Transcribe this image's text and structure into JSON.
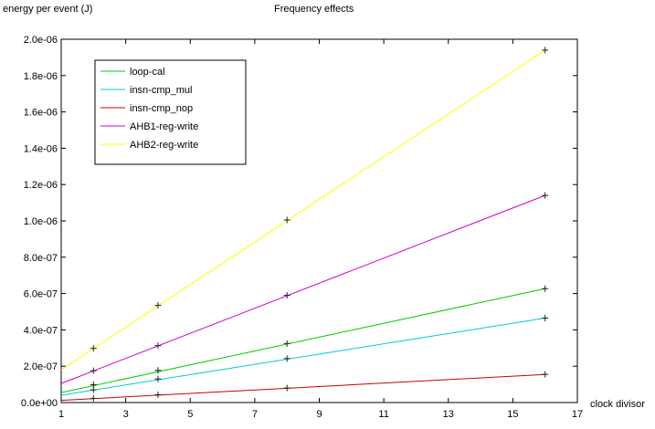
{
  "chart_data": {
    "type": "line",
    "title": "Frequency effects",
    "xlabel": "clock divisor",
    "ylabel": "energy per event (J)",
    "xlim": [
      1,
      17
    ],
    "ylim": [
      0,
      2e-06
    ],
    "x_ticks": [
      "1",
      "3",
      "5",
      "7",
      "9",
      "11",
      "13",
      "15",
      "17"
    ],
    "y_ticks": [
      "0.0e+00",
      "2.0e-07",
      "4.0e-07",
      "6.0e-07",
      "8.0e-07",
      "1.0e-06",
      "1.2e-06",
      "1.4e-06",
      "1.6e-06",
      "1.8e-06",
      "2.0e-06"
    ],
    "grid": false,
    "legend_position": "top-left",
    "series": [
      {
        "name": "loop-cal",
        "color": "#00cc00",
        "line_points": [
          [
            1,
            5.5e-08
          ],
          [
            16,
            6.27e-07
          ]
        ],
        "points": [
          [
            2,
            9.8e-08
          ],
          [
            4,
            1.77e-07
          ],
          [
            8,
            3.25e-07
          ],
          [
            16,
            6.27e-07
          ]
        ]
      },
      {
        "name": "insn-cmp_mul",
        "color": "#00cccc",
        "line_points": [
          [
            1,
            4e-08
          ],
          [
            16,
            4.65e-07
          ]
        ],
        "points": [
          [
            2,
            7e-08
          ],
          [
            4,
            1.3e-07
          ],
          [
            8,
            2.42e-07
          ],
          [
            16,
            4.65e-07
          ]
        ]
      },
      {
        "name": "insn-cmp_nop",
        "color": "#cc0000",
        "line_points": [
          [
            1,
            1.2e-08
          ],
          [
            16,
            1.55e-07
          ]
        ],
        "points": [
          [
            2,
            2.3e-08
          ],
          [
            4,
            4.3e-08
          ],
          [
            8,
            8e-08
          ],
          [
            16,
            1.55e-07
          ]
        ]
      },
      {
        "name": "AHB1-reg-write",
        "color": "#cc00cc",
        "line_points": [
          [
            1,
            1.05e-07
          ],
          [
            16,
            1.14e-06
          ]
        ],
        "points": [
          [
            2,
            1.75e-07
          ],
          [
            4,
            3.13e-07
          ],
          [
            8,
            5.9e-07
          ],
          [
            16,
            1.14e-06
          ]
        ]
      },
      {
        "name": "AHB2-reg-write",
        "color": "#ffff00",
        "line_points": [
          [
            1,
            1.8e-07
          ],
          [
            16,
            1.94e-06
          ]
        ],
        "points": [
          [
            2,
            2.98e-07
          ],
          [
            4,
            5.35e-07
          ],
          [
            8,
            1.005e-06
          ],
          [
            16,
            1.94e-06
          ]
        ]
      }
    ]
  }
}
